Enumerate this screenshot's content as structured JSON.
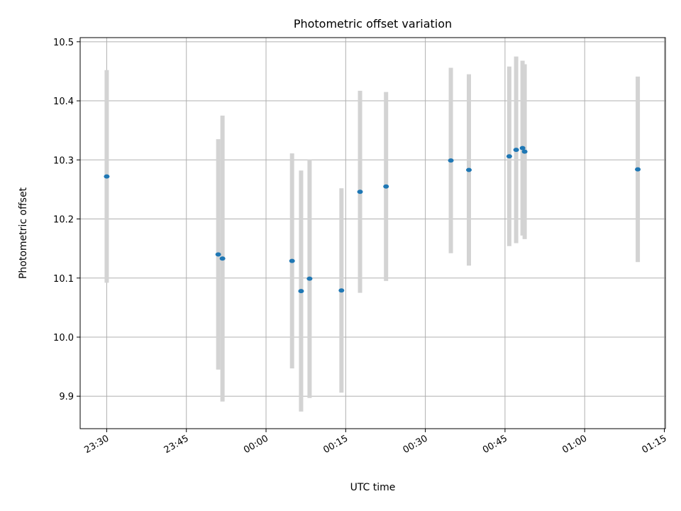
{
  "chart_data": {
    "type": "scatter",
    "title": "Photometric offset variation",
    "xlabel": "UTC time",
    "ylabel": "Photometric offset",
    "x_tick_labels": [
      "23:30",
      "23:45",
      "00:00",
      "00:15",
      "00:30",
      "00:45",
      "01:00",
      "01:15"
    ],
    "x_tick_minutes": [
      -30,
      -15,
      0,
      15,
      30,
      45,
      60,
      75
    ],
    "xlim_minutes": [
      -35,
      75.2
    ],
    "y_ticks": [
      9.9,
      10.0,
      10.1,
      10.2,
      10.3,
      10.4,
      10.5
    ],
    "y_tick_labels": [
      "9.9",
      "10.0",
      "10.1",
      "10.2",
      "10.3",
      "10.4",
      "10.5"
    ],
    "ylim": [
      9.845,
      10.507
    ],
    "grid": true,
    "colors": {
      "points": "#1f77b4",
      "errorbars": "#d3d3d3",
      "grid": "#b0b0b0"
    },
    "points": [
      {
        "t_minutes": -30.0,
        "y": 10.272,
        "err": 0.18
      },
      {
        "t_minutes": -9.0,
        "y": 10.14,
        "err": 0.195
      },
      {
        "t_minutes": -8.2,
        "y": 10.133,
        "err": 0.242
      },
      {
        "t_minutes": 4.9,
        "y": 10.129,
        "err": 0.182
      },
      {
        "t_minutes": 6.6,
        "y": 10.078,
        "err": 0.204
      },
      {
        "t_minutes": 8.2,
        "y": 10.099,
        "err": 0.202
      },
      {
        "t_minutes": 14.2,
        "y": 10.079,
        "err": 0.173
      },
      {
        "t_minutes": 17.7,
        "y": 10.246,
        "err": 0.171
      },
      {
        "t_minutes": 22.6,
        "y": 10.255,
        "err": 0.16
      },
      {
        "t_minutes": 34.8,
        "y": 10.299,
        "err": 0.157
      },
      {
        "t_minutes": 38.2,
        "y": 10.283,
        "err": 0.162
      },
      {
        "t_minutes": 45.8,
        "y": 10.306,
        "err": 0.152
      },
      {
        "t_minutes": 47.1,
        "y": 10.317,
        "err": 0.158
      },
      {
        "t_minutes": 48.3,
        "y": 10.32,
        "err": 0.148
      },
      {
        "t_minutes": 48.7,
        "y": 10.314,
        "err": 0.148
      },
      {
        "t_minutes": 70.0,
        "y": 10.284,
        "err": 0.157
      }
    ]
  }
}
